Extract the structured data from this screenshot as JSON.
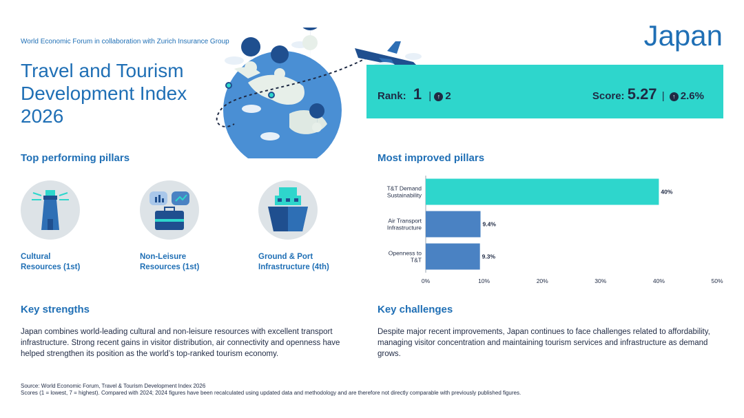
{
  "header": {
    "collab": "World Economic Forum in collaboration with Zurich Insurance Group",
    "title": "Travel and Tourism Development Index 2026",
    "country": "Japan"
  },
  "rank": {
    "rank_label": "Rank:",
    "rank_value": "1",
    "rank_change": "2",
    "score_label": "Score:",
    "score_value": "5.27",
    "score_change": "2.6%"
  },
  "pillars": {
    "heading": "Top performing pillars",
    "items": [
      {
        "label1": "Cultural",
        "label2": "Resources (1st)",
        "icon": "lighthouse-icon"
      },
      {
        "label1": "Non-Leisure",
        "label2": "Resources (1st)",
        "icon": "briefcase-icon"
      },
      {
        "label1": "Ground & Port",
        "label2": "Infrastructure (4th)",
        "icon": "ship-icon"
      }
    ]
  },
  "improved": {
    "heading": "Most improved pillars"
  },
  "chart_data": {
    "type": "bar",
    "orientation": "horizontal",
    "categories": [
      [
        "T&T Demand",
        "Sustainability"
      ],
      [
        "Air Transport",
        "Infrastructure"
      ],
      [
        "Openness to",
        "T&T"
      ]
    ],
    "values": [
      40,
      9.4,
      9.3
    ],
    "value_labels": [
      "40%",
      "9.4%",
      "9.3%"
    ],
    "bar_colors": [
      "#2ed6cc",
      "#4a82c3",
      "#4a82c3"
    ],
    "xlim": [
      0,
      50
    ],
    "xticks": [
      "0%",
      "10%",
      "20%",
      "30%",
      "40%",
      "50%"
    ],
    "grid": false
  },
  "strengths": {
    "heading": "Key strengths",
    "text": "Japan combines world-leading cultural and non-leisure resources with excellent transport infrastructure. Strong recent gains in visitor distribution, air connectivity and openness have helped strengthen its position as the world’s top-ranked tourism economy."
  },
  "challenges": {
    "heading": "Key challenges",
    "text": "Despite major recent improvements, Japan continues to face challenges related to affordability, managing visitor concentration and maintaining tourism services and infrastructure as demand grows."
  },
  "footer": {
    "source": "Source: World Economic Forum, Travel & Tourism Development Index 2026",
    "note": "Scores (1 = lowest, 7 = highest). Compared with 2024; 2024 figures have been recalculated using updated data and methodology and are therefore not directly comparable with previously published figures."
  },
  "colors": {
    "brand_blue": "#1f6fb5",
    "teal": "#2ed6cc",
    "bar_blue": "#4a82c3",
    "navy": "#1f2a44"
  },
  "globe": {
    "icon": "globe-illustration",
    "plane_icon": "airplane-icon"
  }
}
